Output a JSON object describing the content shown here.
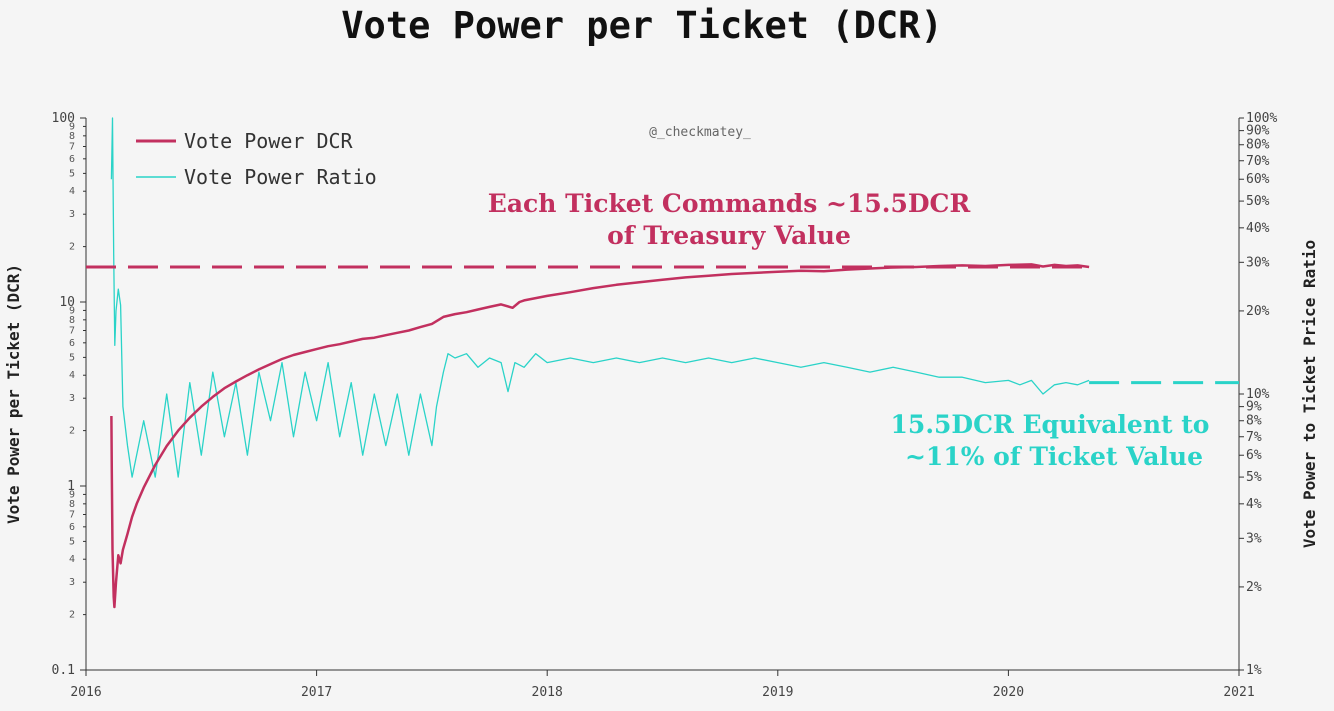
{
  "chart_data": {
    "type": "line",
    "title": "Vote Power per Ticket (DCR)",
    "watermark": "@_checkmatey_",
    "ylabel_left": "Vote Power per Ticket (DCR)",
    "ylabel_right": "Vote Power to Ticket Price Ratio",
    "x_ticks": [
      "2016",
      "2017",
      "2018",
      "2019",
      "2020",
      "2021"
    ],
    "xlim": [
      2016.0,
      2021.0
    ],
    "y_left": {
      "scale": "log",
      "lim": [
        0.1,
        100
      ],
      "major_ticks": [
        {
          "v": 0.1,
          "label": "0.1"
        },
        {
          "v": 1,
          "label": "1"
        },
        {
          "v": 10,
          "label": "10"
        },
        {
          "v": 100,
          "label": "100"
        }
      ],
      "minor_ticks": [
        {
          "v": 0.2,
          "label": "2"
        },
        {
          "v": 0.3,
          "label": "3"
        },
        {
          "v": 0.4,
          "label": "4"
        },
        {
          "v": 0.5,
          "label": "5"
        },
        {
          "v": 0.6,
          "label": "6"
        },
        {
          "v": 0.7,
          "label": "7"
        },
        {
          "v": 0.8,
          "label": "8"
        },
        {
          "v": 0.9,
          "label": "9"
        },
        {
          "v": 2,
          "label": "2"
        },
        {
          "v": 3,
          "label": "3"
        },
        {
          "v": 4,
          "label": "4"
        },
        {
          "v": 5,
          "label": "5"
        },
        {
          "v": 6,
          "label": "6"
        },
        {
          "v": 7,
          "label": "7"
        },
        {
          "v": 8,
          "label": "8"
        },
        {
          "v": 9,
          "label": "9"
        },
        {
          "v": 20,
          "label": "2"
        },
        {
          "v": 30,
          "label": "3"
        },
        {
          "v": 40,
          "label": "4"
        },
        {
          "v": 50,
          "label": "5"
        },
        {
          "v": 60,
          "label": "6"
        },
        {
          "v": 70,
          "label": "7"
        },
        {
          "v": 80,
          "label": "8"
        },
        {
          "v": 90,
          "label": "9"
        }
      ]
    },
    "y_right": {
      "scale": "log",
      "lim": [
        0.01,
        1.0
      ],
      "ticks": [
        {
          "v": 0.01,
          "label": "1%"
        },
        {
          "v": 0.02,
          "label": "2%"
        },
        {
          "v": 0.03,
          "label": "3%"
        },
        {
          "v": 0.04,
          "label": "4%"
        },
        {
          "v": 0.05,
          "label": "5%"
        },
        {
          "v": 0.06,
          "label": "6%"
        },
        {
          "v": 0.07,
          "label": "7%"
        },
        {
          "v": 0.08,
          "label": "8%"
        },
        {
          "v": 0.09,
          "label": "9%"
        },
        {
          "v": 0.1,
          "label": "10%"
        },
        {
          "v": 0.2,
          "label": "20%"
        },
        {
          "v": 0.3,
          "label": "30%"
        },
        {
          "v": 0.4,
          "label": "40%"
        },
        {
          "v": 0.5,
          "label": "50%"
        },
        {
          "v": 0.6,
          "label": "60%"
        },
        {
          "v": 0.7,
          "label": "70%"
        },
        {
          "v": 0.8,
          "label": "80%"
        },
        {
          "v": 0.9,
          "label": "90%"
        },
        {
          "v": 1.0,
          "label": "100%"
        }
      ]
    },
    "series": [
      {
        "name": "Vote Power DCR",
        "color": "#c2305f",
        "axis": "left",
        "points": [
          [
            2016.11,
            2.4
          ],
          [
            2016.112,
            1.2
          ],
          [
            2016.115,
            0.45
          ],
          [
            2016.12,
            0.25
          ],
          [
            2016.123,
            0.22
          ],
          [
            2016.13,
            0.3
          ],
          [
            2016.14,
            0.42
          ],
          [
            2016.15,
            0.38
          ],
          [
            2016.16,
            0.45
          ],
          [
            2016.18,
            0.55
          ],
          [
            2016.2,
            0.68
          ],
          [
            2016.22,
            0.8
          ],
          [
            2016.25,
            0.98
          ],
          [
            2016.3,
            1.3
          ],
          [
            2016.35,
            1.65
          ],
          [
            2016.4,
            2.0
          ],
          [
            2016.45,
            2.35
          ],
          [
            2016.5,
            2.7
          ],
          [
            2016.55,
            3.05
          ],
          [
            2016.6,
            3.4
          ],
          [
            2016.65,
            3.7
          ],
          [
            2016.7,
            4.0
          ],
          [
            2016.75,
            4.3
          ],
          [
            2016.8,
            4.6
          ],
          [
            2016.85,
            4.9
          ],
          [
            2016.9,
            5.15
          ],
          [
            2016.95,
            5.35
          ],
          [
            2017.0,
            5.55
          ],
          [
            2017.05,
            5.75
          ],
          [
            2017.1,
            5.9
          ],
          [
            2017.15,
            6.1
          ],
          [
            2017.2,
            6.3
          ],
          [
            2017.25,
            6.4
          ],
          [
            2017.3,
            6.6
          ],
          [
            2017.35,
            6.8
          ],
          [
            2017.4,
            7.0
          ],
          [
            2017.45,
            7.3
          ],
          [
            2017.5,
            7.6
          ],
          [
            2017.55,
            8.3
          ],
          [
            2017.6,
            8.6
          ],
          [
            2017.65,
            8.8
          ],
          [
            2017.7,
            9.1
          ],
          [
            2017.75,
            9.4
          ],
          [
            2017.8,
            9.7
          ],
          [
            2017.85,
            9.3
          ],
          [
            2017.88,
            10.0
          ],
          [
            2017.9,
            10.2
          ],
          [
            2017.95,
            10.5
          ],
          [
            2018.0,
            10.8
          ],
          [
            2018.1,
            11.3
          ],
          [
            2018.2,
            11.9
          ],
          [
            2018.3,
            12.4
          ],
          [
            2018.4,
            12.8
          ],
          [
            2018.5,
            13.2
          ],
          [
            2018.6,
            13.6
          ],
          [
            2018.7,
            13.9
          ],
          [
            2018.8,
            14.2
          ],
          [
            2018.9,
            14.4
          ],
          [
            2019.0,
            14.6
          ],
          [
            2019.1,
            14.8
          ],
          [
            2019.2,
            14.7
          ],
          [
            2019.3,
            15.0
          ],
          [
            2019.4,
            15.2
          ],
          [
            2019.5,
            15.4
          ],
          [
            2019.6,
            15.5
          ],
          [
            2019.7,
            15.7
          ],
          [
            2019.8,
            15.8
          ],
          [
            2019.9,
            15.7
          ],
          [
            2020.0,
            15.9
          ],
          [
            2020.1,
            16.0
          ],
          [
            2020.15,
            15.6
          ],
          [
            2020.2,
            15.9
          ],
          [
            2020.25,
            15.7
          ],
          [
            2020.3,
            15.8
          ],
          [
            2020.35,
            15.5
          ]
        ]
      },
      {
        "name": "Vote Power Ratio",
        "color": "#2ad3c8",
        "axis": "right",
        "points": [
          [
            2016.11,
            0.6
          ],
          [
            2016.115,
            1.0
          ],
          [
            2016.12,
            0.32
          ],
          [
            2016.125,
            0.15
          ],
          [
            2016.13,
            0.2
          ],
          [
            2016.14,
            0.24
          ],
          [
            2016.15,
            0.21
          ],
          [
            2016.16,
            0.09
          ],
          [
            2016.18,
            0.065
          ],
          [
            2016.2,
            0.05
          ],
          [
            2016.25,
            0.08
          ],
          [
            2016.3,
            0.05
          ],
          [
            2016.35,
            0.1
          ],
          [
            2016.4,
            0.05
          ],
          [
            2016.45,
            0.11
          ],
          [
            2016.5,
            0.06
          ],
          [
            2016.55,
            0.12
          ],
          [
            2016.6,
            0.07
          ],
          [
            2016.65,
            0.11
          ],
          [
            2016.7,
            0.06
          ],
          [
            2016.75,
            0.12
          ],
          [
            2016.8,
            0.08
          ],
          [
            2016.85,
            0.13
          ],
          [
            2016.9,
            0.07
          ],
          [
            2016.95,
            0.12
          ],
          [
            2017.0,
            0.08
          ],
          [
            2017.05,
            0.13
          ],
          [
            2017.1,
            0.07
          ],
          [
            2017.15,
            0.11
          ],
          [
            2017.2,
            0.06
          ],
          [
            2017.25,
            0.1
          ],
          [
            2017.3,
            0.065
          ],
          [
            2017.35,
            0.1
          ],
          [
            2017.4,
            0.06
          ],
          [
            2017.45,
            0.1
          ],
          [
            2017.5,
            0.065
          ],
          [
            2017.52,
            0.09
          ],
          [
            2017.55,
            0.12
          ],
          [
            2017.57,
            0.14
          ],
          [
            2017.6,
            0.135
          ],
          [
            2017.65,
            0.14
          ],
          [
            2017.7,
            0.125
          ],
          [
            2017.75,
            0.135
          ],
          [
            2017.8,
            0.13
          ],
          [
            2017.83,
            0.102
          ],
          [
            2017.86,
            0.13
          ],
          [
            2017.9,
            0.125
          ],
          [
            2017.95,
            0.14
          ],
          [
            2018.0,
            0.13
          ],
          [
            2018.1,
            0.135
          ],
          [
            2018.2,
            0.13
          ],
          [
            2018.3,
            0.135
          ],
          [
            2018.4,
            0.13
          ],
          [
            2018.5,
            0.135
          ],
          [
            2018.6,
            0.13
          ],
          [
            2018.7,
            0.135
          ],
          [
            2018.8,
            0.13
          ],
          [
            2018.9,
            0.135
          ],
          [
            2019.0,
            0.13
          ],
          [
            2019.1,
            0.125
          ],
          [
            2019.2,
            0.13
          ],
          [
            2019.3,
            0.125
          ],
          [
            2019.4,
            0.12
          ],
          [
            2019.5,
            0.125
          ],
          [
            2019.6,
            0.12
          ],
          [
            2019.7,
            0.115
          ],
          [
            2019.8,
            0.115
          ],
          [
            2019.9,
            0.11
          ],
          [
            2020.0,
            0.112
          ],
          [
            2020.05,
            0.108
          ],
          [
            2020.1,
            0.112
          ],
          [
            2020.15,
            0.1
          ],
          [
            2020.2,
            0.108
          ],
          [
            2020.25,
            0.11
          ],
          [
            2020.3,
            0.108
          ],
          [
            2020.35,
            0.112
          ]
        ]
      }
    ],
    "reference_lines": [
      {
        "name": "dcr-reference-line",
        "axis": "left",
        "value": 15.5,
        "color": "#c2305f",
        "x_range": [
          2016.0,
          2020.35
        ]
      },
      {
        "name": "ratio-reference-line",
        "axis": "right",
        "value": 0.11,
        "color": "#2ad3c8",
        "x_range": [
          2020.35,
          2021.0
        ]
      }
    ],
    "annotations": [
      {
        "lines": [
          "Each Ticket Commands ~15.5DCR",
          "of Treasury Value"
        ],
        "color": "#c2305f"
      },
      {
        "lines": [
          "15.5DCR Equivalent to",
          "~11% of Ticket Value"
        ],
        "color": "#2ad3c8"
      }
    ],
    "legend": {
      "position": "top-left"
    }
  }
}
